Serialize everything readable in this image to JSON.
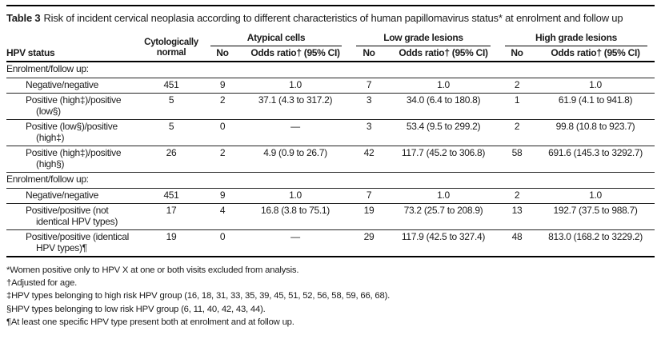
{
  "colors": {
    "text": "#1b1b1b",
    "rule": "#000000",
    "background": "#ffffff"
  },
  "caption": {
    "label": "Table 3",
    "text": "Risk of incident cervical neoplasia according to different characteristics of human papillomavirus status* at enrolment and follow up"
  },
  "table": {
    "headers": {
      "status": "HPV status",
      "cyto": "Cytologically normal",
      "groups": [
        {
          "label": "Atypical cells",
          "no": "No",
          "or": "Odds ratio† (95% CI)"
        },
        {
          "label": "Low grade lesions",
          "no": "No",
          "or": "Odds ratio† (95% CI)"
        },
        {
          "label": "High grade lesions",
          "no": "No",
          "or": "Odds ratio† (95% CI)"
        }
      ]
    },
    "sections": [
      {
        "label": "Enrolment/follow up:",
        "rows": [
          {
            "label": "Negative/negative",
            "c": [
              "451",
              "9",
              "1.0",
              "7",
              "1.0",
              "2",
              "1.0"
            ]
          },
          {
            "label": "Positive (high‡)/positive (low§)",
            "c": [
              "5",
              "2",
              "37.1 (4.3 to 317.2)",
              "3",
              "34.0 (6.4 to 180.8)",
              "1",
              "61.9 (4.1 to 941.8)"
            ]
          },
          {
            "label": "Positive (low§)/positive (high‡)",
            "c": [
              "5",
              "0",
              "—",
              "3",
              "53.4 (9.5 to 299.2)",
              "2",
              "99.8 (10.8 to 923.7)"
            ]
          },
          {
            "label": "Positive (high‡)/positive (high§)",
            "c": [
              "26",
              "2",
              "4.9 (0.9 to 26.7)",
              "42",
              "117.7 (45.2 to 306.8)",
              "58",
              "691.6 (145.3 to 3292.7)"
            ]
          }
        ]
      },
      {
        "label": "Enrolment/follow up:",
        "rows": [
          {
            "label": "Negative/negative",
            "c": [
              "451",
              "9",
              "1.0",
              "7",
              "1.0",
              "2",
              "1.0"
            ]
          },
          {
            "label": "Positive/positive (not identical HPV types)",
            "c": [
              "17",
              "4",
              "16.8 (3.8 to 75.1)",
              "19",
              "73.2 (25.7 to 208.9)",
              "13",
              "192.7 (37.5 to 988.7)"
            ]
          },
          {
            "label": "Positive/positive (identical HPV types)¶",
            "c": [
              "19",
              "0",
              "—",
              "29",
              "117.9 (42.5 to 327.4)",
              "48",
              "813.0 (168.2 to 3229.2)"
            ]
          }
        ]
      }
    ]
  },
  "footnotes": [
    "*Women positive only to HPV X at one or both visits excluded from analysis.",
    "†Adjusted for age.",
    "‡HPV types belonging to high risk HPV group (16, 18, 31, 33, 35, 39, 45, 51, 52, 56, 58, 59, 66, 68).",
    "§HPV types belonging to low risk HPV group (6, 11, 40, 42, 43, 44).",
    "¶At least one specific HPV type present both at enrolment and at follow up."
  ]
}
